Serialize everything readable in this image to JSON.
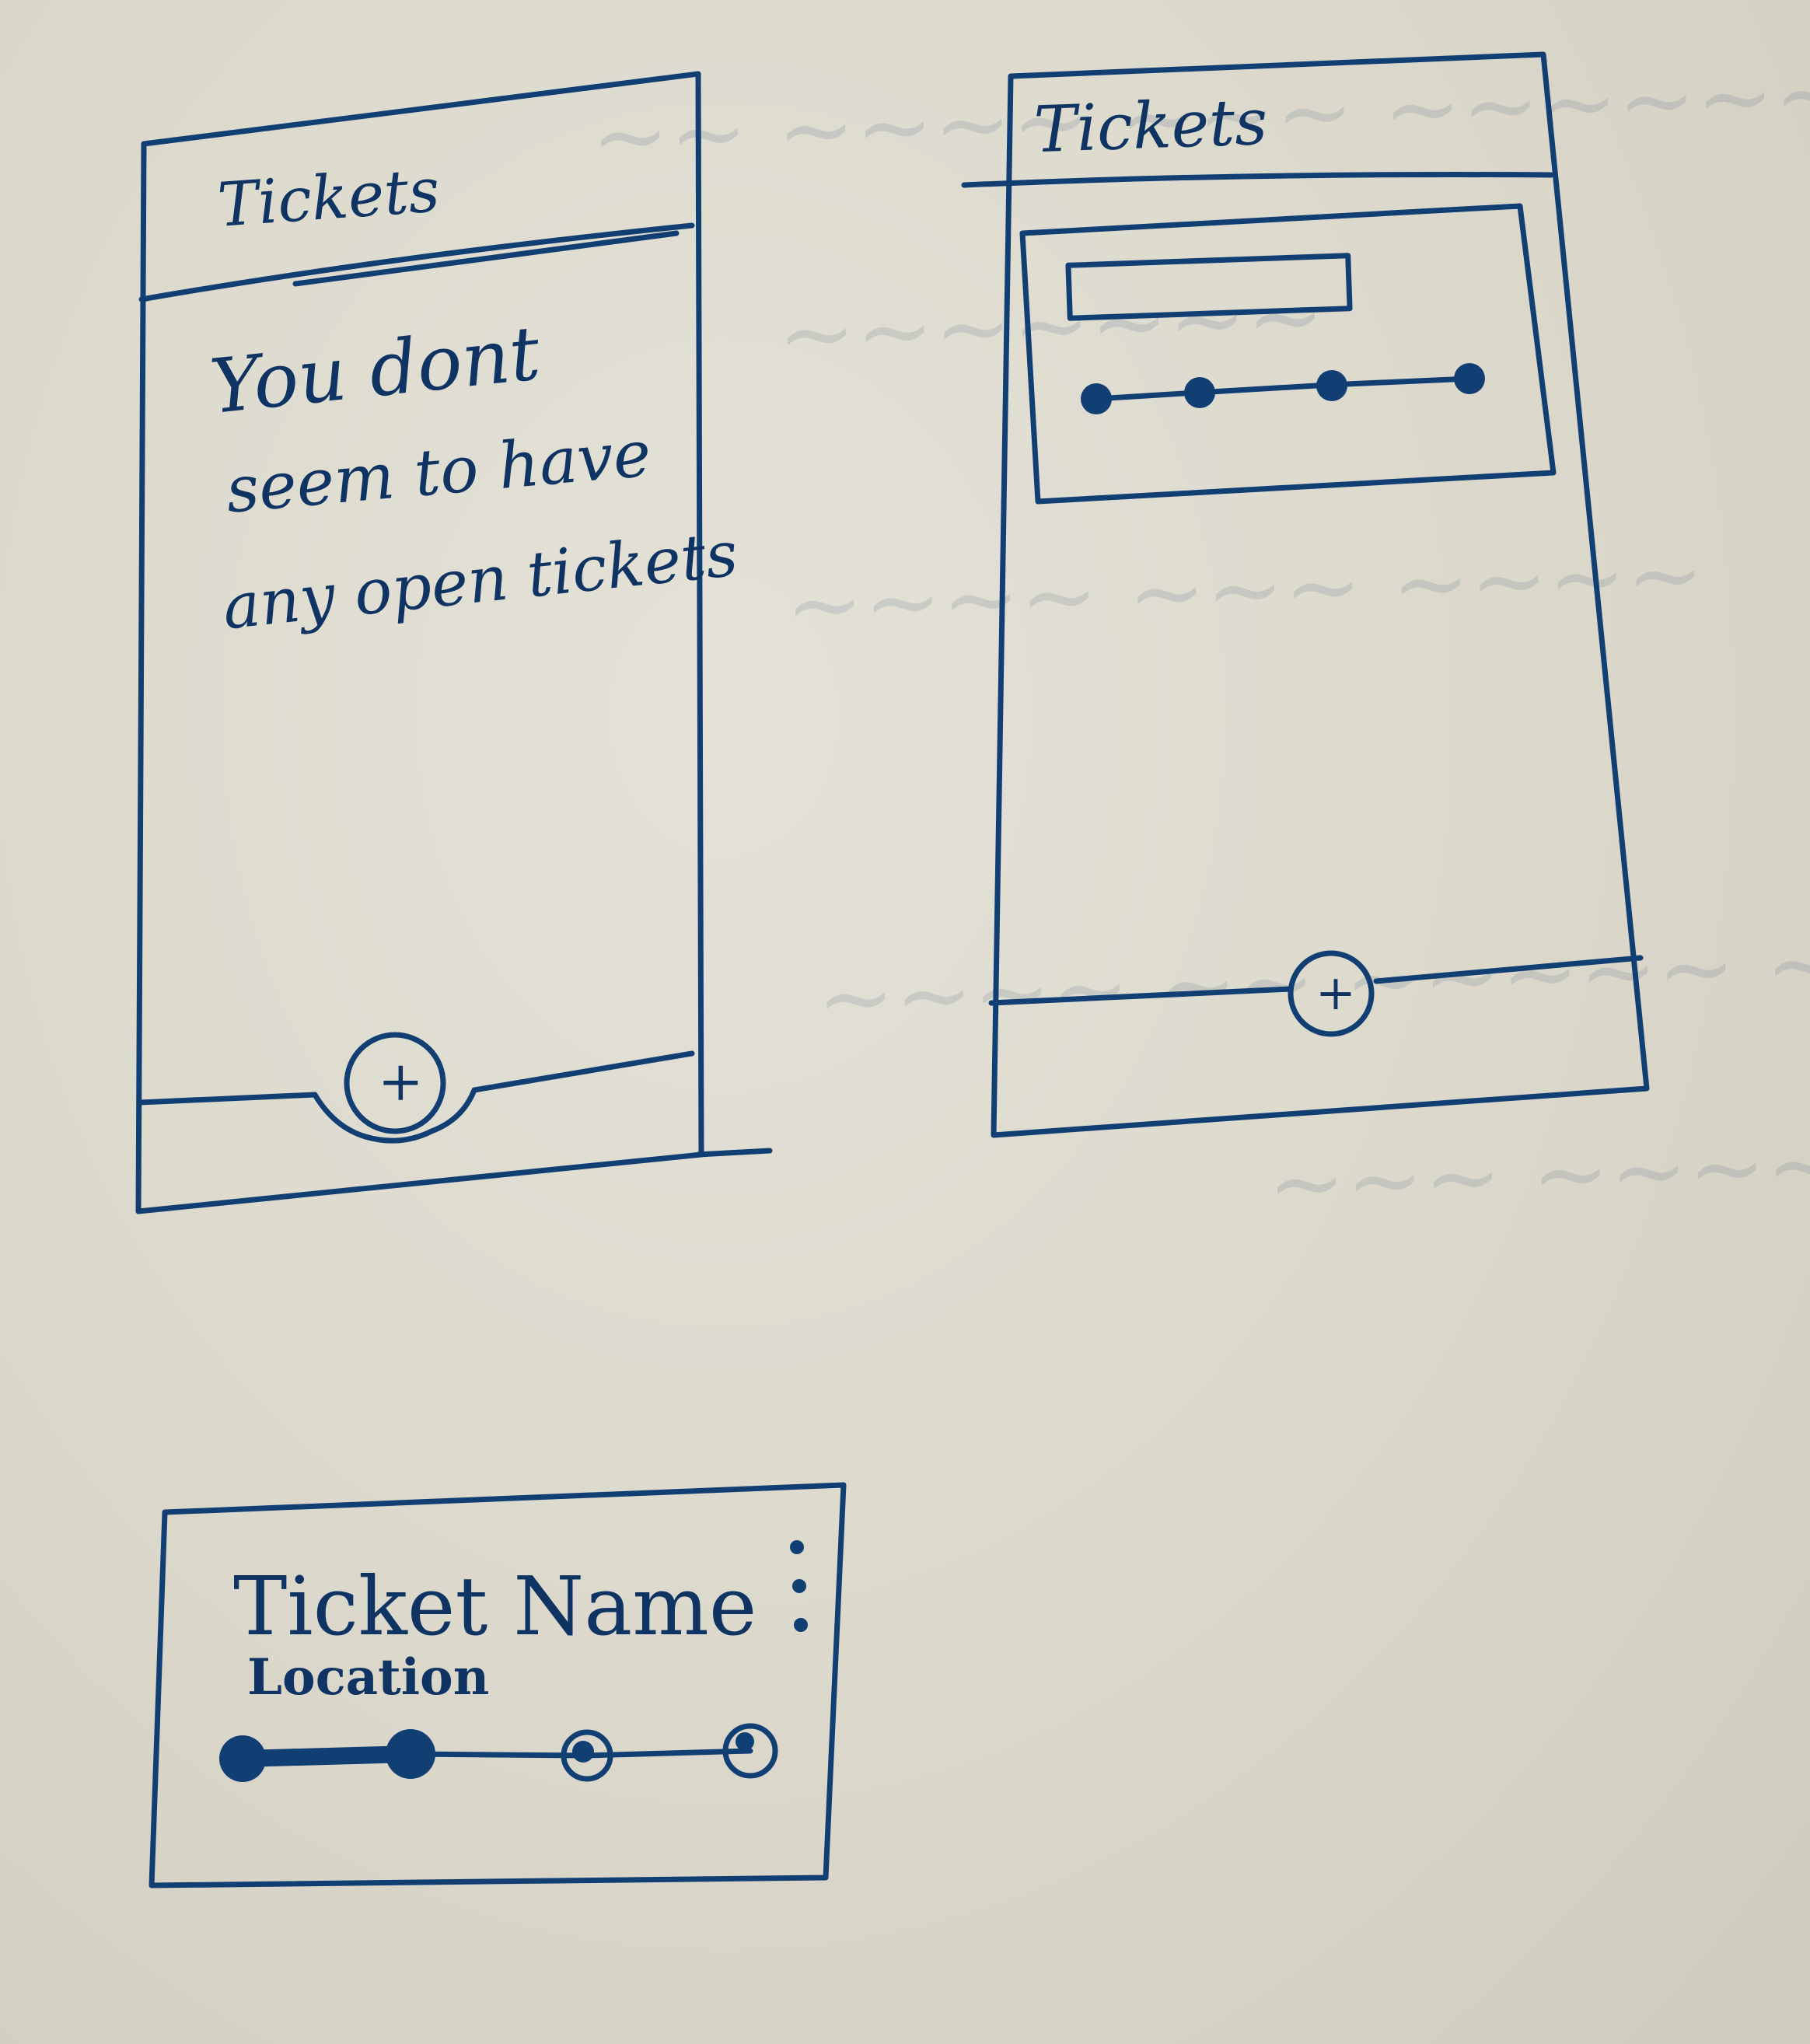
{
  "screens": {
    "empty_state": {
      "title": "Tickets",
      "message_lines": [
        "You dont",
        "seem to have",
        "any open tickets"
      ],
      "fab_symbol": "+"
    },
    "list_state": {
      "title": "Tickets",
      "fab_symbol": "+",
      "card_progress_steps": 4
    }
  },
  "ticket_card": {
    "name": "Ticket Name",
    "location": "Location",
    "menu_icon": "more-vertical-icon",
    "progress_steps": 4,
    "steps_completed": 2
  },
  "ink_color": "#123f73"
}
